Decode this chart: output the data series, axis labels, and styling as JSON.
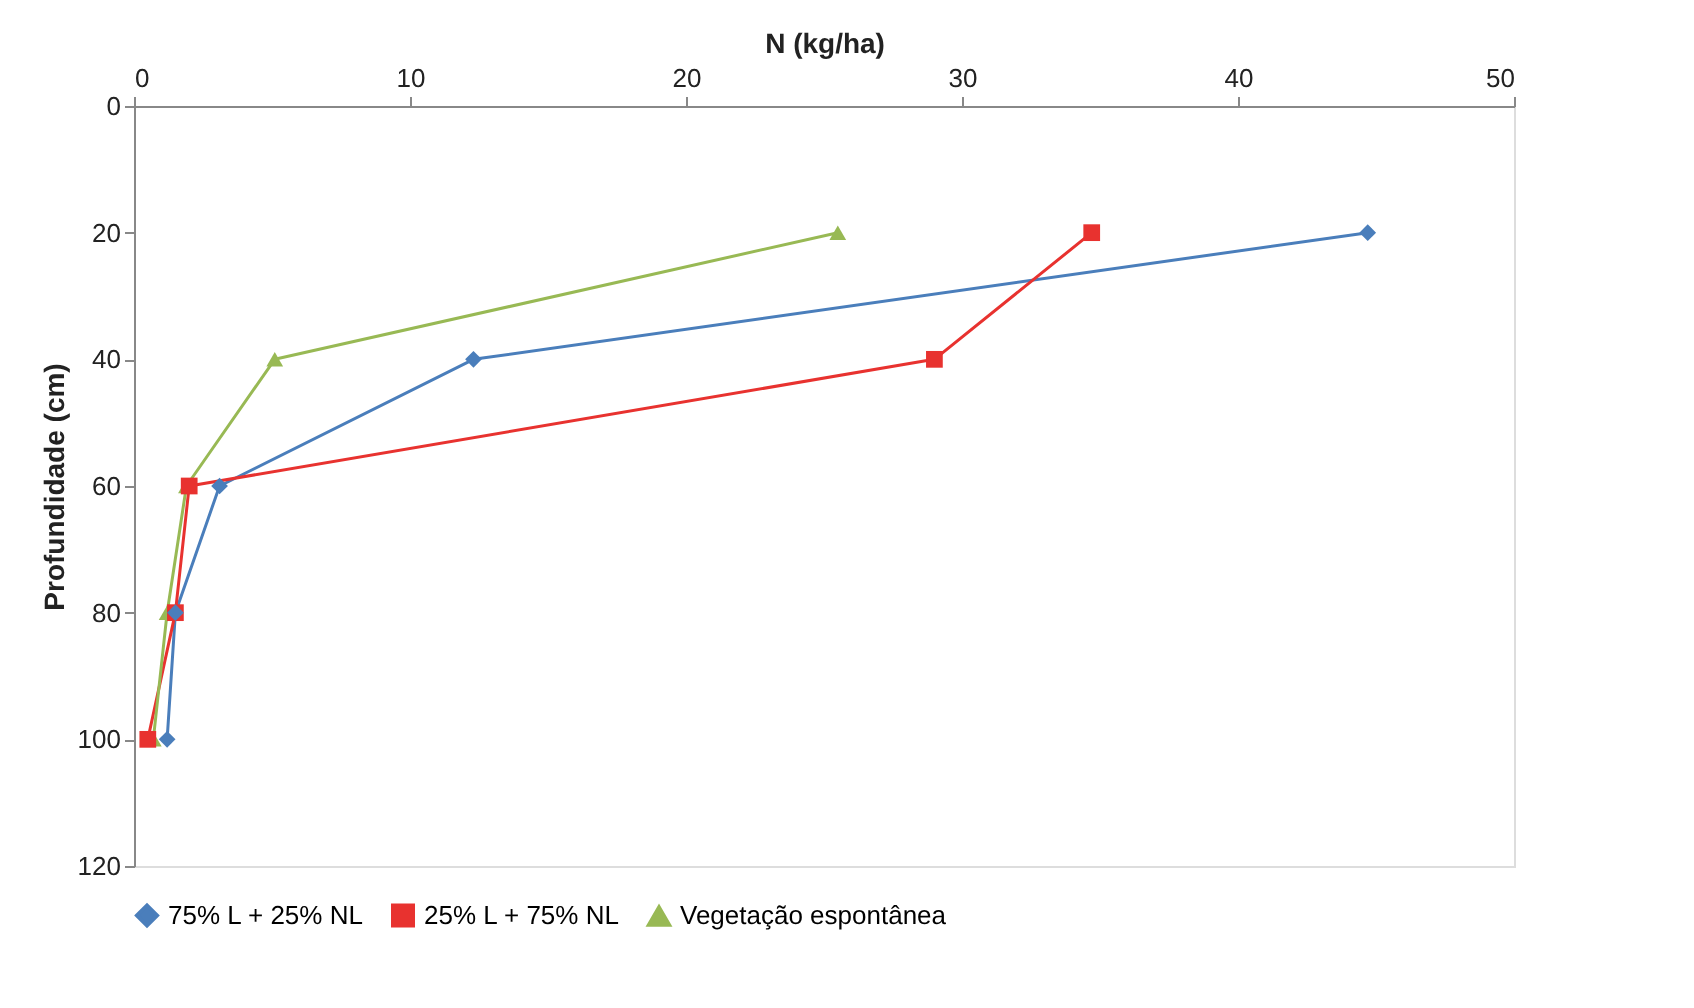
{
  "chart_data": {
    "type": "line",
    "xlabel": "N (kg/ha)",
    "ylabel": "Profundidade (cm)",
    "xlim": [
      0,
      50
    ],
    "xticks": [
      0,
      10,
      20,
      30,
      40,
      50
    ],
    "ylim": [
      120,
      0
    ],
    "yticks": [
      0,
      20,
      40,
      60,
      80,
      100,
      120
    ],
    "grid": false,
    "legend": "bottom",
    "series": [
      {
        "name": "75% L + 25% NL",
        "color": "#4a7ebb",
        "marker": "diamond",
        "x": [
          44.7,
          12.3,
          3.1,
          1.5,
          1.2
        ],
        "values": [
          20,
          40,
          60,
          80,
          100
        ]
      },
      {
        "name": "25% L + 75% NL",
        "color": "#e8322f",
        "marker": "square",
        "x": [
          34.7,
          29.0,
          2.0,
          1.5,
          0.5
        ],
        "values": [
          20,
          40,
          60,
          80,
          100
        ]
      },
      {
        "name": "Vegetação espontânea",
        "color": "#98b954",
        "marker": "triangle",
        "x": [
          25.5,
          5.1,
          1.9,
          1.2,
          0.7
        ],
        "values": [
          20,
          40,
          60,
          80,
          100
        ]
      }
    ]
  }
}
